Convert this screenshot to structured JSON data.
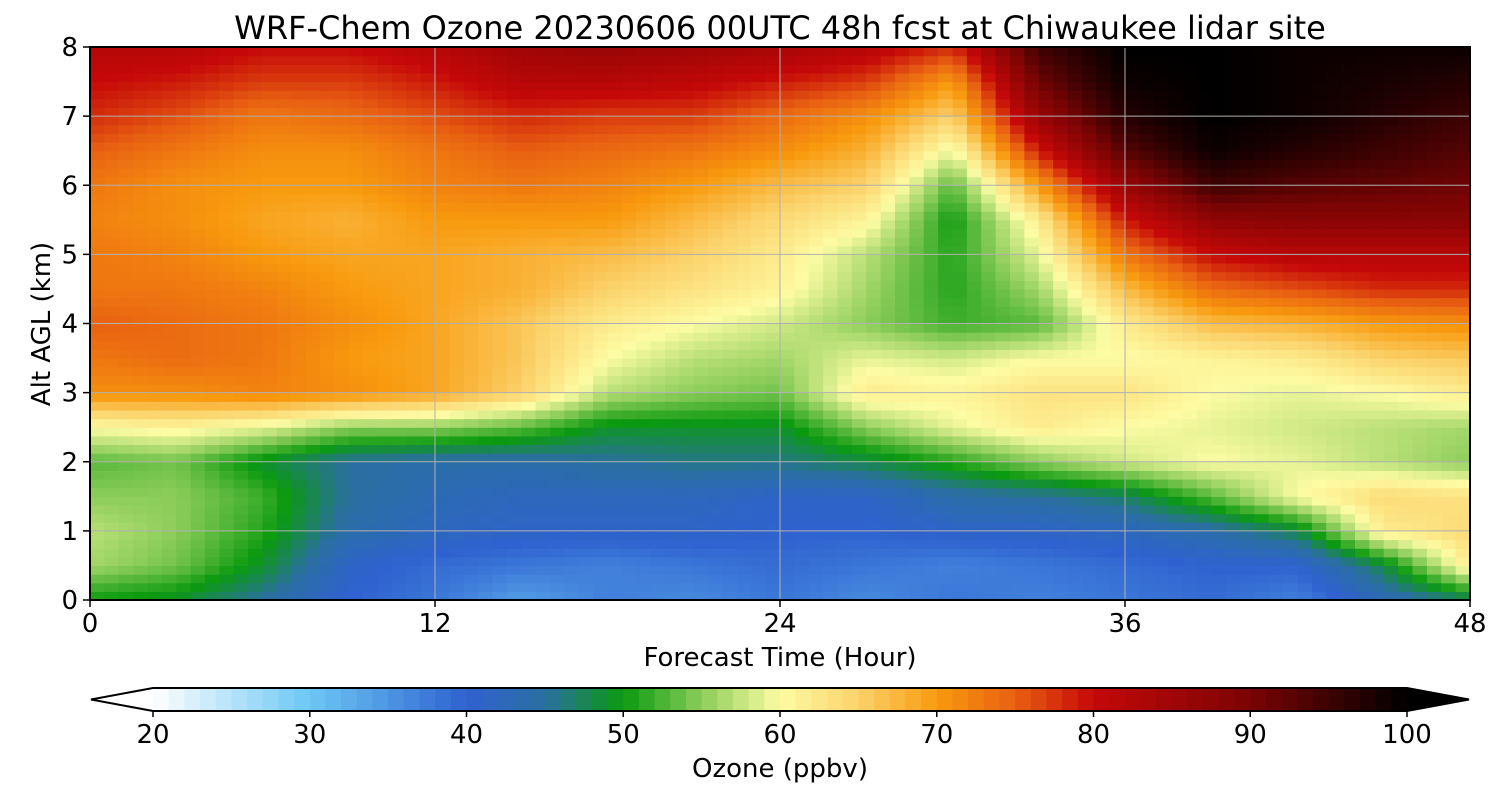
{
  "chart_data": {
    "type": "heatmap",
    "title": "WRF-Chem Ozone  20230606 00UTC 48h fcst at Chiwaukee lidar site",
    "xlabel": "Forecast Time (Hour)",
    "ylabel": "Alt AGL (km)",
    "xlim": [
      0,
      48
    ],
    "ylim": [
      0,
      8
    ],
    "xticks": [
      0,
      12,
      24,
      36,
      48
    ],
    "yticks": [
      0,
      1,
      2,
      3,
      4,
      5,
      6,
      7,
      8
    ],
    "grid": true,
    "x": [
      0,
      3,
      6,
      9,
      12,
      15,
      18,
      21,
      24,
      27,
      30,
      33,
      36,
      39,
      42,
      45,
      48
    ],
    "y": [
      0,
      0.5,
      1,
      1.5,
      2,
      2.5,
      3,
      3.5,
      4,
      4.5,
      5,
      5.5,
      6,
      6.5,
      7,
      7.5,
      8
    ],
    "z": [
      [
        50,
        49,
        45,
        40,
        38,
        34,
        37,
        36,
        38,
        36,
        38,
        37,
        38,
        39,
        37,
        43,
        47
      ],
      [
        56,
        54,
        49,
        41,
        39,
        38,
        37,
        38,
        39,
        38,
        37,
        38,
        39,
        40,
        40,
        48,
        62
      ],
      [
        57,
        55,
        51,
        44,
        42,
        41,
        41,
        41,
        40,
        40,
        41,
        41,
        42,
        44,
        48,
        62,
        64
      ],
      [
        55,
        55,
        52,
        45,
        43,
        42,
        42,
        42,
        41,
        41,
        44,
        45,
        47,
        53,
        60,
        64,
        63
      ],
      [
        53,
        54,
        49,
        45,
        44,
        44,
        45,
        46,
        46,
        48,
        51,
        55,
        58,
        60,
        59,
        57,
        55
      ],
      [
        60,
        61,
        59,
        55,
        55,
        53,
        49,
        49,
        49,
        55,
        59,
        62,
        60,
        59,
        58,
        57,
        56
      ],
      [
        71,
        71,
        72,
        71,
        69,
        65,
        57,
        55,
        54,
        62,
        61,
        63,
        63,
        60,
        59,
        60,
        62
      ],
      [
        73,
        74,
        73,
        70,
        69,
        66,
        60,
        57,
        56,
        59,
        58,
        60,
        60,
        61,
        62,
        65,
        66
      ],
      [
        75,
        74,
        73,
        71,
        69,
        66,
        62,
        60,
        58,
        55,
        52,
        53,
        62,
        67,
        68,
        70,
        71
      ],
      [
        73,
        73,
        72,
        70,
        69,
        68,
        65,
        63,
        61,
        56,
        51,
        56,
        67,
        74,
        76,
        78,
        78
      ],
      [
        73,
        72,
        70,
        69,
        69,
        68,
        67,
        65,
        62,
        57,
        51,
        59,
        73,
        80,
        82,
        82,
        82
      ],
      [
        72,
        71,
        69,
        68,
        70,
        70,
        70,
        67,
        64,
        61,
        50,
        62,
        79,
        87,
        88,
        88,
        88
      ],
      [
        73,
        71,
        70,
        70,
        72,
        73,
        72,
        70,
        67,
        65,
        53,
        70,
        86,
        95,
        93,
        92,
        91
      ],
      [
        75,
        73,
        71,
        71,
        73,
        75,
        74,
        73,
        71,
        68,
        59,
        79,
        93,
        99,
        97,
        95,
        93
      ],
      [
        78,
        76,
        73,
        74,
        76,
        78,
        77,
        77,
        74,
        71,
        65,
        86,
        97,
        100,
        99,
        97,
        95
      ],
      [
        80,
        79,
        77,
        77,
        79,
        82,
        82,
        81,
        79,
        77,
        70,
        91,
        99,
        100,
        99,
        98,
        97
      ],
      [
        82,
        82,
        80,
        80,
        82,
        85,
        86,
        85,
        84,
        82,
        78,
        95,
        100,
        100,
        99,
        99,
        99
      ]
    ],
    "colorbar": {
      "label": "Ozone  (ppbv)",
      "min": 20,
      "max": 100,
      "ticks": [
        20,
        30,
        40,
        50,
        60,
        70,
        80,
        90,
        100
      ],
      "extend": "both",
      "stops": [
        {
          "v": 20,
          "c": "#ffffff"
        },
        {
          "v": 30,
          "c": "#6cc7f4"
        },
        {
          "v": 40,
          "c": "#2f62d0"
        },
        {
          "v": 45,
          "c": "#2a6fa0"
        },
        {
          "v": 50,
          "c": "#0b9a0f"
        },
        {
          "v": 55,
          "c": "#8ccd5a"
        },
        {
          "v": 60,
          "c": "#fdfca4"
        },
        {
          "v": 65,
          "c": "#fbd26b"
        },
        {
          "v": 70,
          "c": "#f89a0e"
        },
        {
          "v": 75,
          "c": "#e86012"
        },
        {
          "v": 80,
          "c": "#c50808"
        },
        {
          "v": 90,
          "c": "#7a0404"
        },
        {
          "v": 100,
          "c": "#000000"
        }
      ],
      "under_color": "#ffffff",
      "over_color": "#000000"
    }
  }
}
